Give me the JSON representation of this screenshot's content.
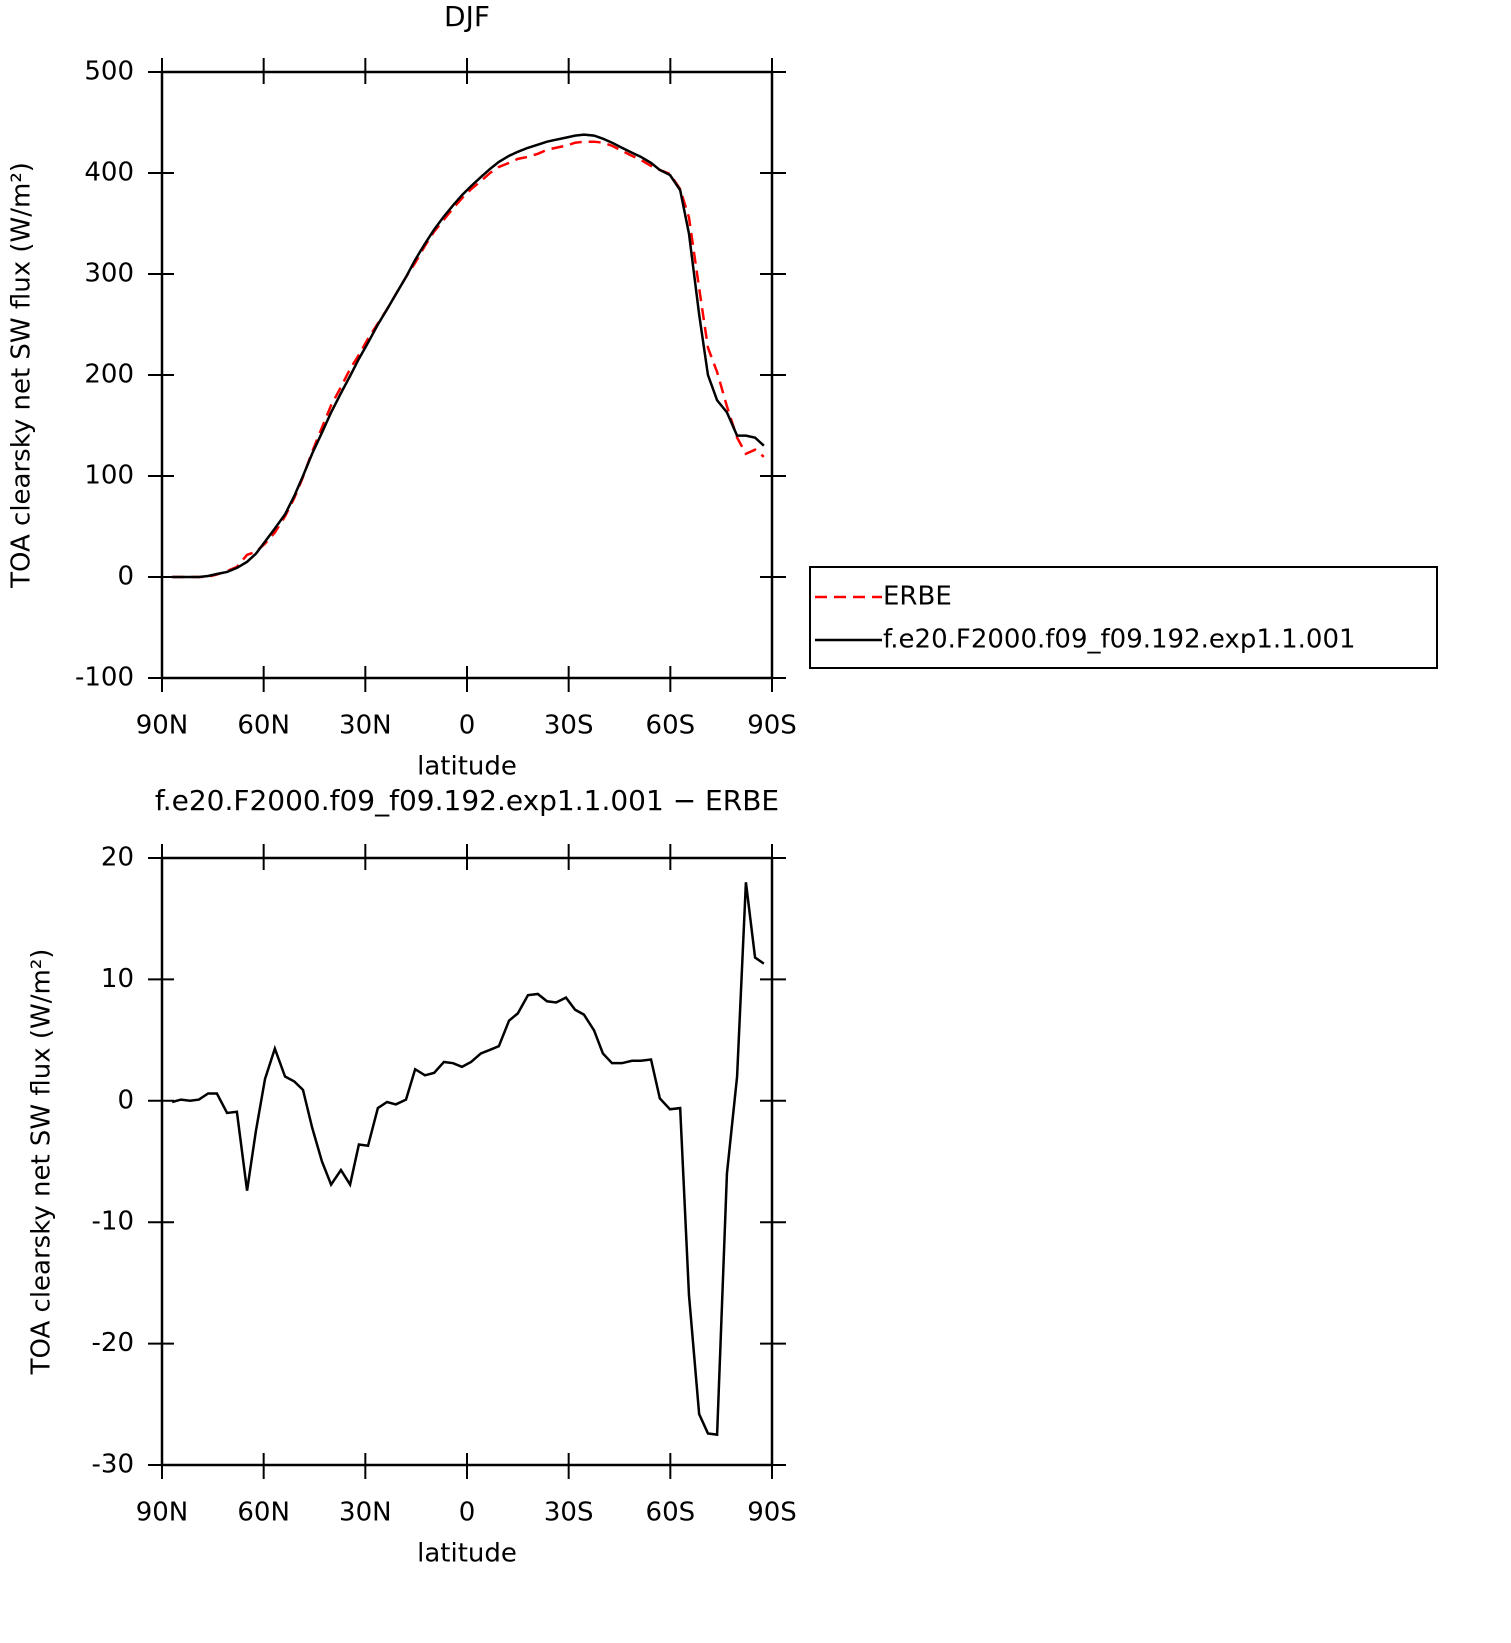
{
  "chart_data": [
    {
      "type": "line",
      "title": "DJF",
      "xlabel": "latitude",
      "ylabel": "TOA clearsky net SW flux (W/m²)",
      "x": [
        87.0,
        84.4,
        81.7,
        79.1,
        76.4,
        73.8,
        70.8,
        67.9,
        64.9,
        62.3,
        59.6,
        56.7,
        53.7,
        51.0,
        48.4,
        45.7,
        42.8,
        40.1,
        37.2,
        34.5,
        31.9,
        29.2,
        26.3,
        23.6,
        21.0,
        18.0,
        15.3,
        12.4,
        9.7,
        6.8,
        4.1,
        1.5,
        -1.2,
        -4.1,
        -6.8,
        -9.4,
        -12.4,
        -15.0,
        -18.0,
        -20.9,
        -23.6,
        -26.3,
        -29.2,
        -31.9,
        -34.5,
        -37.5,
        -40.1,
        -42.8,
        -45.7,
        -48.7,
        -51.3,
        -54.3,
        -56.9,
        -59.9,
        -62.9,
        -65.5,
        -68.5,
        -71.1,
        -73.8,
        -76.7,
        -79.7,
        -82.3,
        -85.0,
        -87.6
      ],
      "series": [
        {
          "name": "ERBE",
          "color": "#ff0000",
          "dashed": true,
          "values": [
            0,
            0,
            0,
            0,
            0.4,
            2.4,
            6,
            10,
            22,
            25,
            33,
            44,
            60,
            78,
            99,
            124,
            148,
            170,
            188,
            206,
            220,
            236,
            251,
            265,
            280,
            297,
            311,
            328,
            342,
            354,
            365,
            375,
            384,
            392,
            400,
            406,
            410,
            414,
            416,
            419,
            423,
            425,
            427,
            430,
            431,
            431,
            430,
            427,
            422,
            417,
            413,
            407,
            403,
            399,
            384,
            356,
            286,
            227,
            203,
            169,
            138,
            122,
            126,
            119
          ]
        },
        {
          "name": "f.e20.F2000.f09_f09.192.exp1.1.001",
          "color": "#000000",
          "dashed": false,
          "values": [
            0,
            0,
            0,
            0,
            1,
            3,
            5,
            9,
            15,
            23,
            35,
            48,
            62,
            80,
            100,
            122,
            143,
            163,
            182,
            199,
            216,
            232,
            250,
            265,
            280,
            297,
            314,
            330,
            344,
            357,
            368,
            378,
            387,
            396,
            404,
            411,
            417,
            421,
            425,
            428,
            431,
            433,
            435,
            437,
            438,
            437,
            434,
            430,
            425,
            420,
            416,
            410,
            403,
            398,
            383,
            340,
            260,
            200,
            175,
            163,
            140,
            140,
            138,
            130
          ]
        }
      ],
      "xlim": [
        90,
        -90
      ],
      "xticks": [
        {
          "value": 90,
          "label": "90N"
        },
        {
          "value": 60,
          "label": "60N"
        },
        {
          "value": 30,
          "label": "30N"
        },
        0,
        {
          "value": -30,
          "label": "30S"
        },
        {
          "value": -60,
          "label": "60S"
        },
        {
          "value": -90,
          "label": "90S"
        }
      ],
      "ylim": [
        -100,
        500
      ],
      "yticks": [
        -100,
        0,
        100,
        200,
        300,
        400,
        500
      ],
      "legend": "right"
    },
    {
      "type": "line",
      "title": "f.e20.F2000.f09_f09.192.exp1.1.001 − ERBE",
      "xlabel": "latitude",
      "ylabel": "TOA clearsky net SW flux (W/m²)",
      "x": [
        87.0,
        84.4,
        81.7,
        79.1,
        76.4,
        73.8,
        70.8,
        67.9,
        64.9,
        62.3,
        59.6,
        56.7,
        53.7,
        51.0,
        48.4,
        45.7,
        42.8,
        40.1,
        37.2,
        34.5,
        31.9,
        29.2,
        26.3,
        23.6,
        21.0,
        18.0,
        15.3,
        12.4,
        9.7,
        6.8,
        4.1,
        1.5,
        -1.2,
        -4.1,
        -6.8,
        -9.4,
        -12.4,
        -15.0,
        -18.0,
        -20.9,
        -23.6,
        -26.3,
        -29.2,
        -31.9,
        -34.5,
        -37.5,
        -40.1,
        -42.8,
        -45.7,
        -48.7,
        -51.3,
        -54.3,
        -56.9,
        -59.9,
        -62.9,
        -65.5,
        -68.5,
        -71.1,
        -73.8,
        -76.7,
        -79.7,
        -82.3,
        -85.0,
        -87.6
      ],
      "series": [
        {
          "color": "#000000",
          "dashed": false,
          "values": [
            -0.1,
            0.1,
            0,
            0.1,
            0.6,
            0.6,
            -1.0,
            -0.9,
            -7.4,
            -2.5,
            1.8,
            4.3,
            2.0,
            1.6,
            0.9,
            -2.2,
            -5.0,
            -6.9,
            -5.7,
            -6.9,
            -3.6,
            -3.7,
            -0.6,
            -0.1,
            -0.3,
            0.1,
            2.6,
            2.1,
            2.3,
            3.2,
            3.1,
            2.8,
            3.2,
            3.9,
            4.2,
            4.5,
            6.6,
            7.2,
            8.7,
            8.8,
            8.2,
            8.1,
            8.5,
            7.5,
            7.1,
            5.8,
            3.9,
            3.1,
            3.1,
            3.3,
            3.3,
            3.4,
            0.2,
            -0.7,
            -0.6,
            -16,
            -25.8,
            -27.4,
            -27.5,
            -6,
            2,
            18,
            11.8,
            11.3
          ]
        }
      ],
      "xlim": [
        90,
        -90
      ],
      "xticks": [
        {
          "value": 90,
          "label": "90N"
        },
        {
          "value": 60,
          "label": "60N"
        },
        {
          "value": 30,
          "label": "30N"
        },
        0,
        {
          "value": -30,
          "label": "30S"
        },
        {
          "value": -60,
          "label": "60S"
        },
        {
          "value": -90,
          "label": "90S"
        }
      ],
      "ylim": [
        -30,
        20
      ],
      "yticks": [
        -30,
        -20,
        -10,
        0,
        10,
        20
      ]
    }
  ]
}
